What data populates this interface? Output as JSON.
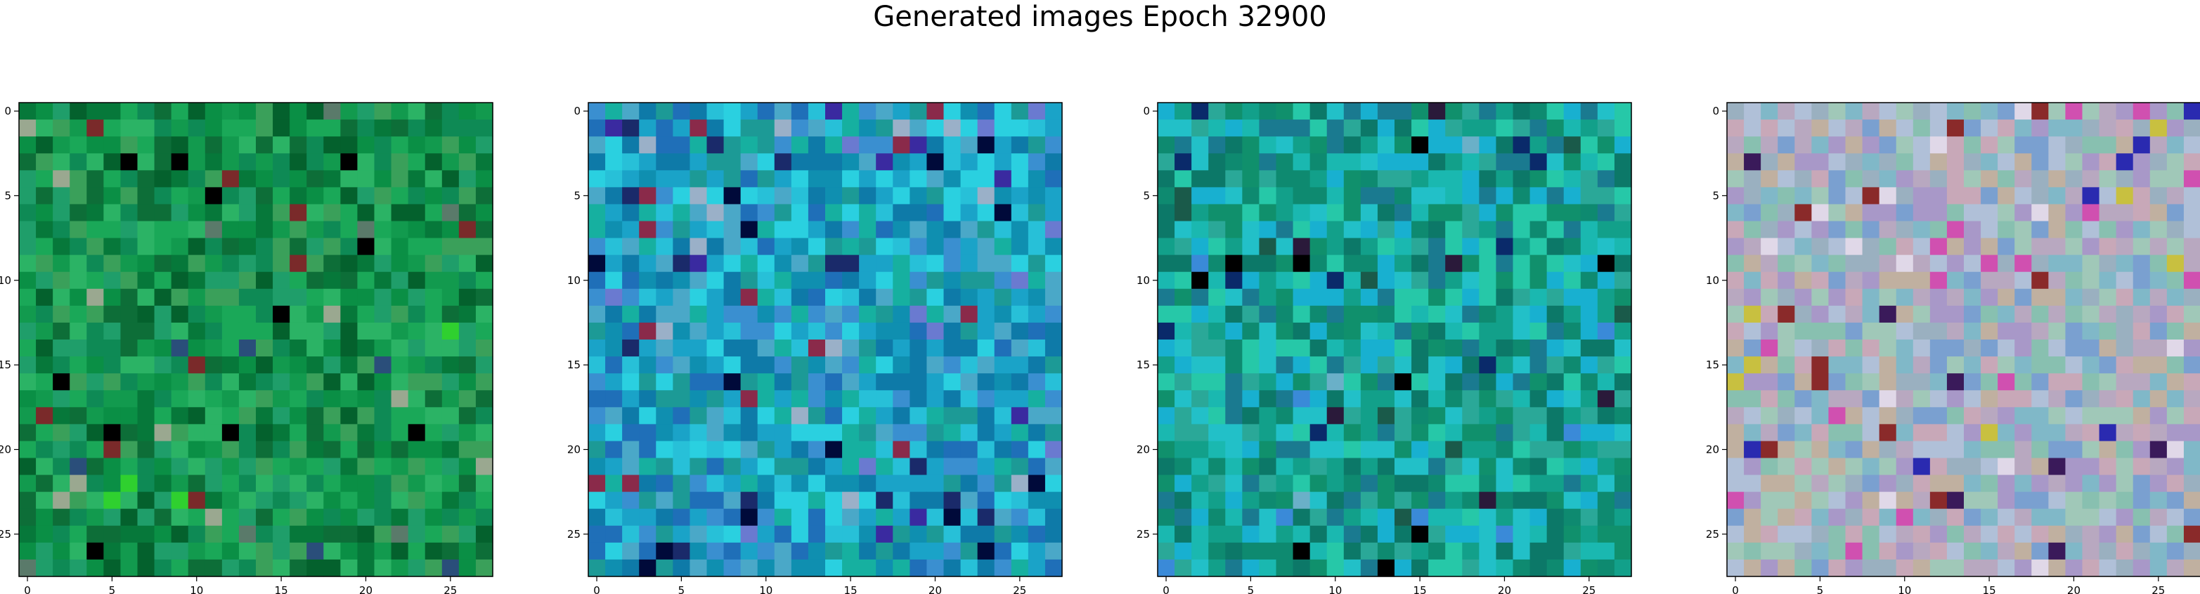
{
  "title": "Generated images Epoch 32900",
  "chart_data": [
    {
      "type": "heatmap",
      "panel": "sample-1",
      "grid_size": 28,
      "xticks": [
        0,
        5,
        10,
        15,
        20,
        25
      ],
      "yticks": [
        0,
        5,
        10,
        15,
        20,
        25
      ],
      "xlim": [
        -0.5,
        27.5
      ],
      "ylim": [
        27.5,
        -0.5
      ],
      "palette": [
        "#0a8f45",
        "#129a4e",
        "#06783a",
        "#1aa858",
        "#0d6e38",
        "#2bb365",
        "#0e8a55",
        "#04612d",
        "#1f9e6a",
        "#3aa05a"
      ],
      "accent_palette": [
        "#000000",
        "#5a7a6a",
        "#2a4e7a",
        "#7a2a2a",
        "#9aa890",
        "#2fd02f"
      ],
      "accent_fraction": 0.06,
      "seed": 11
    },
    {
      "type": "heatmap",
      "panel": "sample-2",
      "grid_size": 28,
      "xticks": [
        0,
        5,
        10,
        15,
        20,
        25
      ],
      "yticks": [
        0,
        5,
        10,
        15,
        20,
        25
      ],
      "xlim": [
        -0.5,
        27.5
      ],
      "ylim": [
        27.5,
        -0.5
      ],
      "palette": [
        "#1aa3c8",
        "#0f8fb0",
        "#27c0d8",
        "#3a8fd0",
        "#1f6fb8",
        "#16b0a0",
        "#2ad0e0",
        "#0e7aa8",
        "#4aa8c8",
        "#1c9a96"
      ],
      "accent_palette": [
        "#000a3a",
        "#3a2aa0",
        "#6a7ad0",
        "#8a2a4a",
        "#1a2a6a",
        "#9ab0c8"
      ],
      "accent_fraction": 0.08,
      "seed": 23
    },
    {
      "type": "heatmap",
      "panel": "sample-3",
      "grid_size": 28,
      "xticks": [
        0,
        5,
        10,
        15,
        20,
        25
      ],
      "yticks": [
        0,
        5,
        10,
        15,
        20,
        25
      ],
      "xlim": [
        -0.5,
        27.5
      ],
      "ylim": [
        27.5,
        -0.5
      ],
      "palette": [
        "#12a08a",
        "#0e8a70",
        "#1ab8b0",
        "#22c0c8",
        "#0c7868",
        "#2aa898",
        "#18b0d0",
        "#10906c",
        "#26c8a8",
        "#1a7a90"
      ],
      "accent_palette": [
        "#000000",
        "#0a2a6a",
        "#3a8ad8",
        "#1a5a4a",
        "#2a1a3a",
        "#6ab0c8"
      ],
      "accent_fraction": 0.06,
      "seed": 37
    },
    {
      "type": "heatmap",
      "panel": "sample-4",
      "grid_size": 28,
      "xticks": [
        0,
        5,
        10,
        15,
        20,
        25
      ],
      "yticks": [
        0,
        5,
        10,
        15,
        20,
        25
      ],
      "xlim": [
        -0.5,
        27.5
      ],
      "ylim": [
        27.5,
        -0.5
      ],
      "palette": [
        "#9ab0c0",
        "#b8a8c0",
        "#80b8c8",
        "#a0c8b8",
        "#c8a8b8",
        "#7aa0d0",
        "#b0c0d8",
        "#a898c8",
        "#88c0b0",
        "#c0b0a0"
      ],
      "accent_palette": [
        "#3a1a5a",
        "#d050b0",
        "#2a2ab0",
        "#e0d8e8",
        "#8a2a2a",
        "#c8c040"
      ],
      "accent_fraction": 0.09,
      "seed": 53
    }
  ]
}
